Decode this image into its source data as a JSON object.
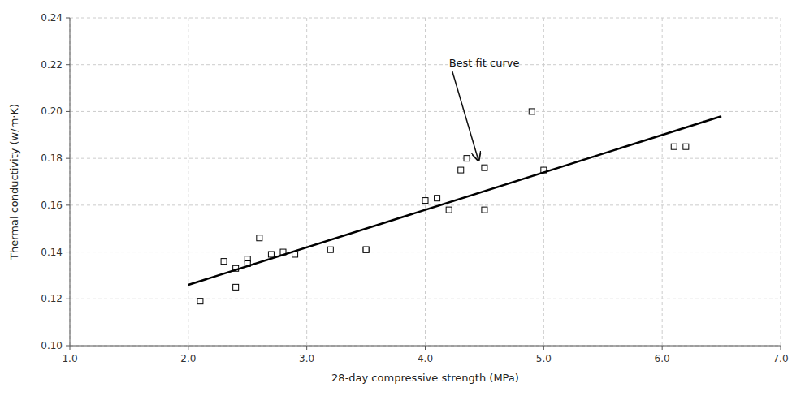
{
  "chart_data": {
    "type": "scatter",
    "xlabel": "28-day compressive  strength  (MPa)",
    "ylabel": "Thermal  conductivity  (w/m·K)",
    "series": [
      {
        "type": "scatter",
        "marker": "square",
        "color": "black",
        "x": [
          2.1,
          2.3,
          2.4,
          2.4,
          2.5,
          2.5,
          2.6,
          2.7,
          2.8,
          2.9,
          3.2,
          3.5,
          3.5,
          4.0,
          4.1,
          4.2,
          4.3,
          4.35,
          4.5,
          4.5,
          4.9,
          5.0,
          6.1,
          6.2
        ],
        "values": [
          0.119,
          0.136,
          0.133,
          0.125,
          0.137,
          0.135,
          0.146,
          0.139,
          0.14,
          0.139,
          0.141,
          0.141,
          0.141,
          0.162,
          0.163,
          0.158,
          0.175,
          0.18,
          0.158,
          0.176,
          0.2,
          0.175,
          0.185,
          0.185
        ]
      },
      {
        "type": "line",
        "color": "black",
        "x": [
          2.0,
          6.5
        ],
        "values": [
          0.126,
          0.198
        ]
      }
    ],
    "xlim": [
      1.0,
      7.0
    ],
    "ylim": [
      0.1,
      0.24
    ],
    "xticks": [
      {
        "value": 1.0,
        "label": "1.0"
      },
      {
        "value": 2.0,
        "label": "2.0"
      },
      {
        "value": 3.0,
        "label": "3.0"
      },
      {
        "value": 4.0,
        "label": "4.0"
      },
      {
        "value": 5.0,
        "label": "5.0"
      },
      {
        "value": 6.0,
        "label": "6.0"
      },
      {
        "value": 7.0,
        "label": "7.0"
      }
    ],
    "yticks": [
      {
        "value": 0.1,
        "label": "0.10"
      },
      0.12,
      0.14,
      0.16,
      0.18,
      {
        "value": 0.2,
        "label": "0.20"
      },
      0.22,
      0.24
    ],
    "grid": true,
    "annotations": [
      {
        "text": "Best fit curve",
        "xy": [
          4.45,
          0.179
        ],
        "xytext": [
          4.2,
          0.218
        ]
      }
    ]
  }
}
